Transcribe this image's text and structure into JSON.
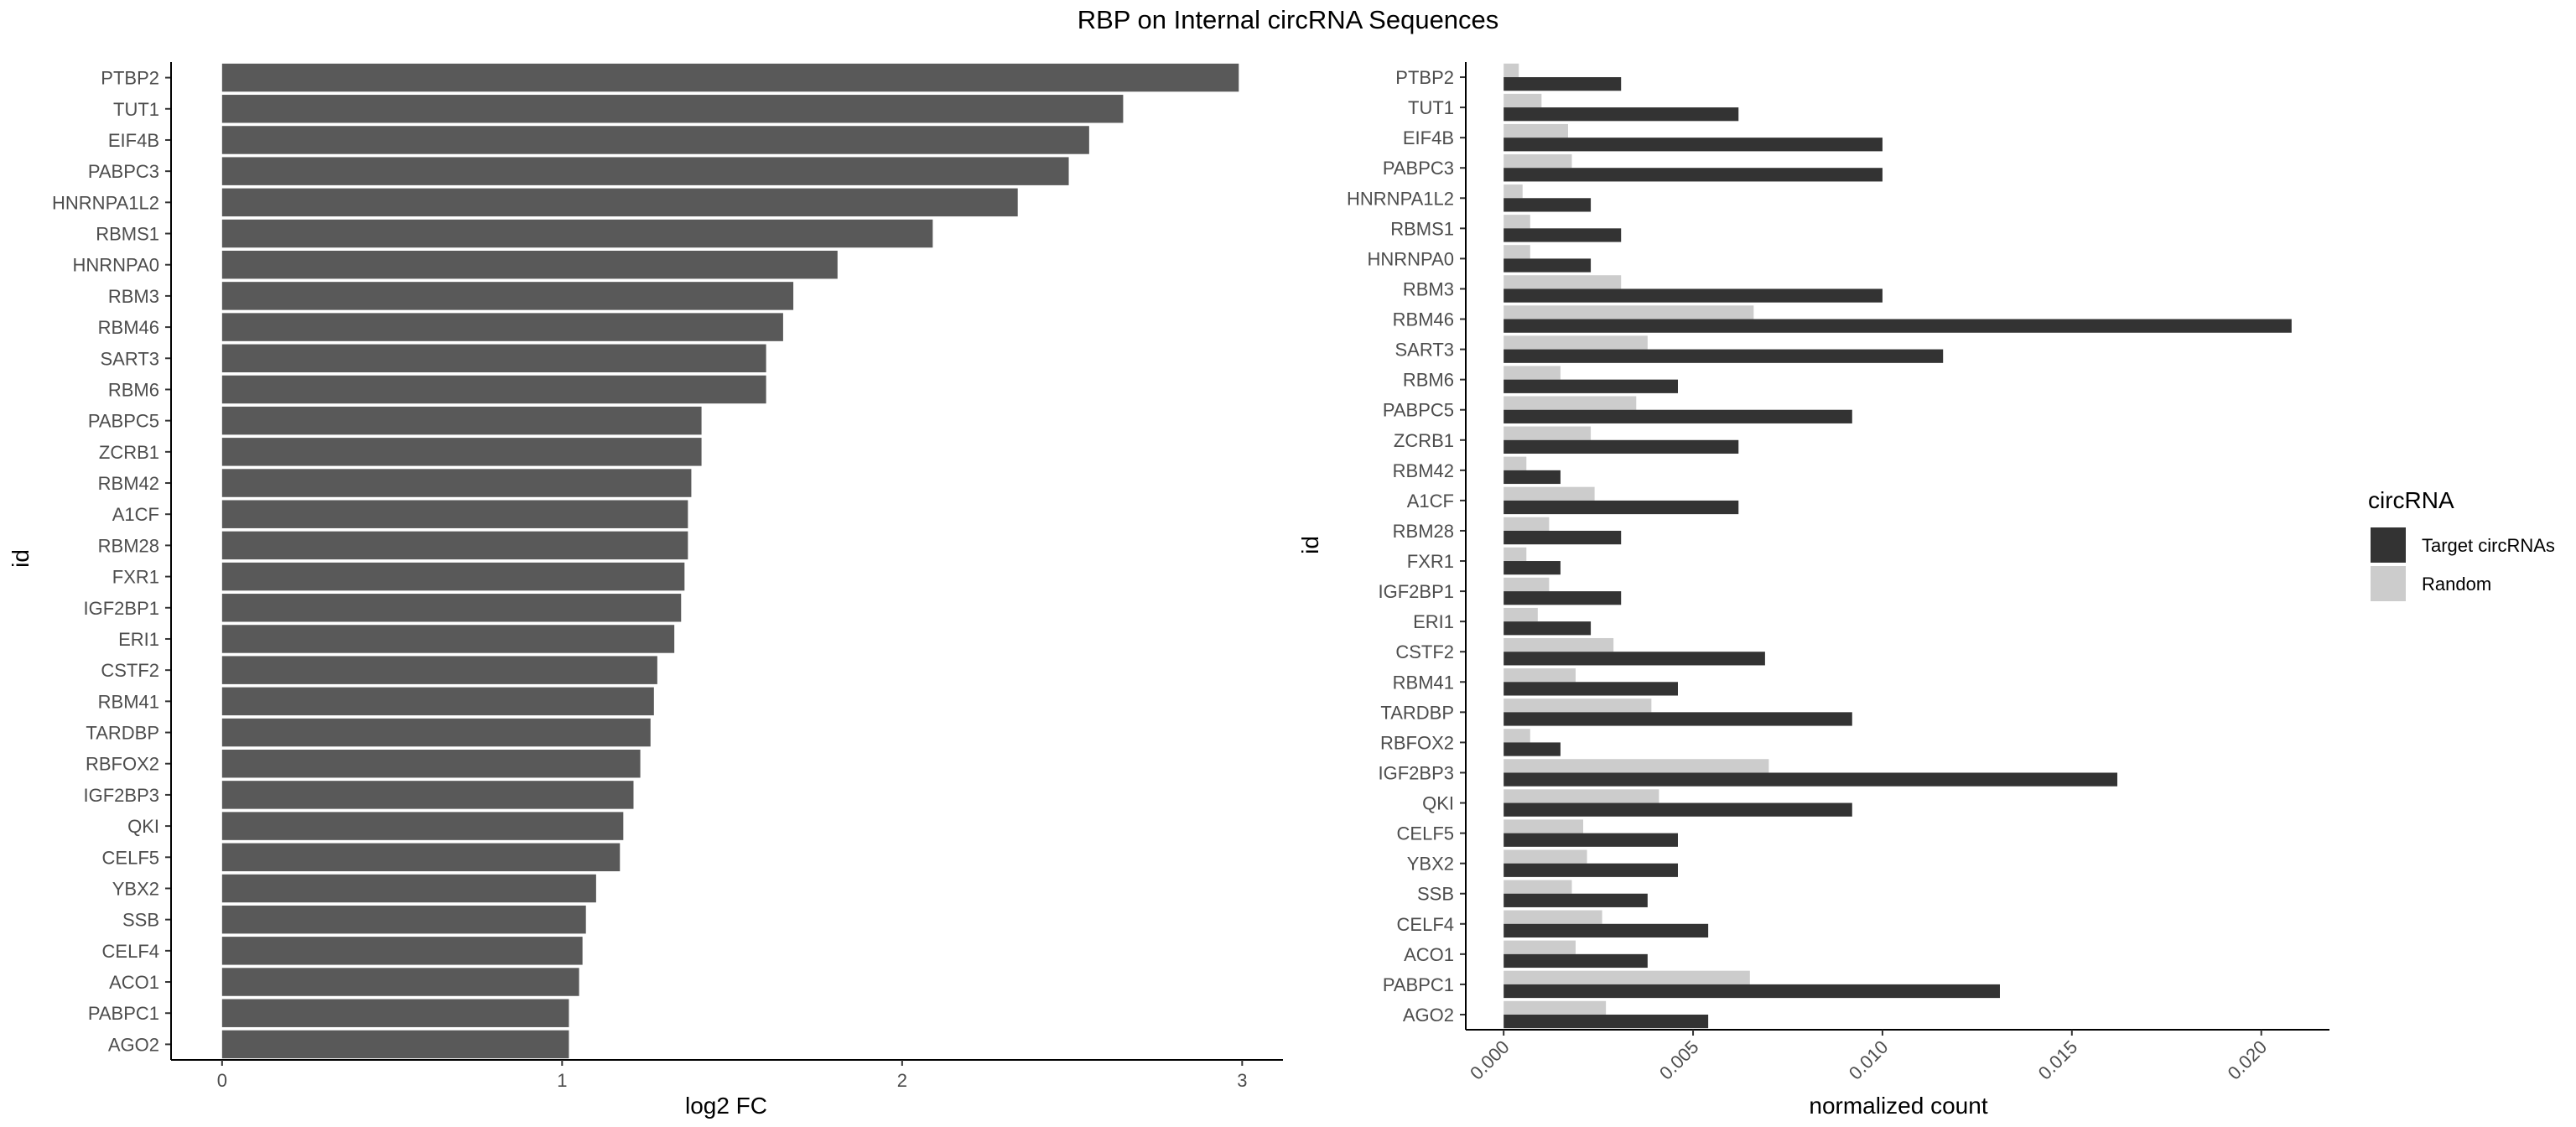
{
  "title": "RBP on Internal circRNA Sequences",
  "colors": {
    "bar_left": "#595959",
    "target": "#333333",
    "random": "#cccccc"
  },
  "chart_data": [
    {
      "type": "bar",
      "orientation": "horizontal",
      "xlabel": "log2 FC",
      "ylabel": "id",
      "xlim": [
        -0.15,
        3.12
      ],
      "xticks": [
        "0",
        "1",
        "2",
        "3"
      ],
      "categories": [
        "PTBP2",
        "TUT1",
        "EIF4B",
        "PABPC3",
        "HNRNPA1L2",
        "RBMS1",
        "HNRNPA0",
        "RBM3",
        "RBM46",
        "SART3",
        "RBM6",
        "PABPC5",
        "ZCRB1",
        "RBM42",
        "A1CF",
        "RBM28",
        "FXR1",
        "IGF2BP1",
        "ERI1",
        "CSTF2",
        "RBM41",
        "TARDBP",
        "RBFOX2",
        "IGF2BP3",
        "QKI",
        "CELF5",
        "YBX2",
        "SSB",
        "CELF4",
        "ACO1",
        "PABPC1",
        "AGO2"
      ],
      "values": [
        2.99,
        2.65,
        2.55,
        2.49,
        2.34,
        2.09,
        1.81,
        1.68,
        1.65,
        1.6,
        1.6,
        1.41,
        1.41,
        1.38,
        1.37,
        1.37,
        1.36,
        1.35,
        1.33,
        1.28,
        1.27,
        1.26,
        1.23,
        1.21,
        1.18,
        1.17,
        1.1,
        1.07,
        1.06,
        1.05,
        1.02,
        1.02
      ]
    },
    {
      "type": "bar",
      "orientation": "horizontal",
      "xlabel": "normalized count",
      "ylabel": "id",
      "xlim": [
        -0.001,
        0.0218
      ],
      "xticks": [
        "0.000",
        "0.005",
        "0.010",
        "0.015",
        "0.020"
      ],
      "legend": {
        "title": "circRNA",
        "position": "right"
      },
      "categories": [
        "PTBP2",
        "TUT1",
        "EIF4B",
        "PABPC3",
        "HNRNPA1L2",
        "RBMS1",
        "HNRNPA0",
        "RBM3",
        "RBM46",
        "SART3",
        "RBM6",
        "PABPC5",
        "ZCRB1",
        "RBM42",
        "A1CF",
        "RBM28",
        "FXR1",
        "IGF2BP1",
        "ERI1",
        "CSTF2",
        "RBM41",
        "TARDBP",
        "RBFOX2",
        "IGF2BP3",
        "QKI",
        "CELF5",
        "YBX2",
        "SSB",
        "CELF4",
        "ACO1",
        "PABPC1",
        "AGO2"
      ],
      "series": [
        {
          "name": "Target circRNAs",
          "values": [
            0.0031,
            0.0062,
            0.01,
            0.01,
            0.0023,
            0.0031,
            0.0023,
            0.01,
            0.0208,
            0.0116,
            0.0046,
            0.0092,
            0.0062,
            0.0015,
            0.0062,
            0.0031,
            0.0015,
            0.0031,
            0.0023,
            0.0069,
            0.0046,
            0.0092,
            0.0015,
            0.0162,
            0.0092,
            0.0046,
            0.0046,
            0.0038,
            0.0054,
            0.0038,
            0.0131,
            0.0054
          ]
        },
        {
          "name": "Random",
          "values": [
            0.0004,
            0.001,
            0.0017,
            0.0018,
            0.0005,
            0.0007,
            0.0007,
            0.0031,
            0.0066,
            0.0038,
            0.0015,
            0.0035,
            0.0023,
            0.0006,
            0.0024,
            0.0012,
            0.0006,
            0.0012,
            0.0009,
            0.0029,
            0.0019,
            0.0039,
            0.0007,
            0.007,
            0.0041,
            0.0021,
            0.0022,
            0.0018,
            0.0026,
            0.0019,
            0.0065,
            0.0027
          ]
        }
      ]
    }
  ]
}
